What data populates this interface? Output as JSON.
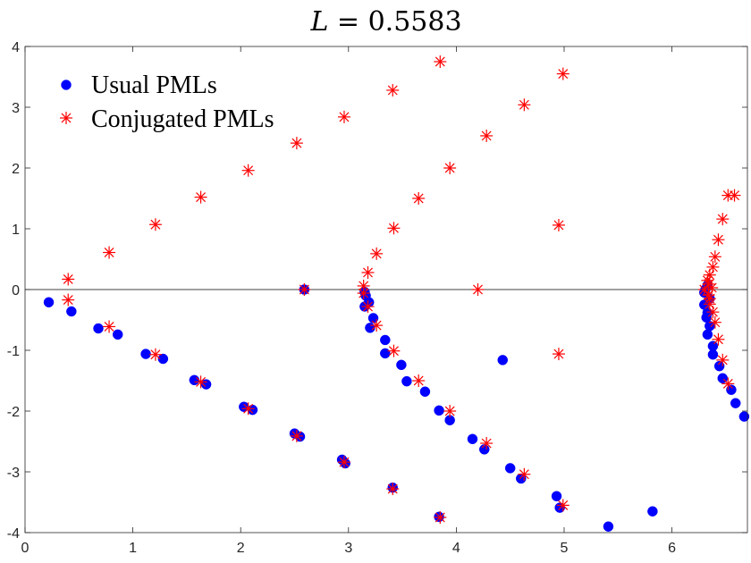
{
  "chart_data": {
    "type": "scatter",
    "title": "L = 0.5583",
    "title_symbol": "L",
    "title_rest": " = 0.5583",
    "xlim": [
      0,
      6.7
    ],
    "ylim": [
      -4,
      4
    ],
    "xticks": [
      0,
      1,
      2,
      3,
      4,
      5,
      6
    ],
    "yticks": [
      -4,
      -3,
      -2,
      -1,
      0,
      1,
      2,
      3,
      4
    ],
    "grid": false,
    "zero_line": true,
    "legend_position": "top-left",
    "series": [
      {
        "name": "Usual PMLs",
        "marker": "filled-circle",
        "color": "#0000ff",
        "points": [
          [
            0.22,
            -0.21
          ],
          [
            0.43,
            -0.36
          ],
          [
            0.68,
            -0.64
          ],
          [
            0.86,
            -0.74
          ],
          [
            1.12,
            -1.06
          ],
          [
            1.28,
            -1.14
          ],
          [
            1.57,
            -1.49
          ],
          [
            1.68,
            -1.56
          ],
          [
            2.03,
            -1.93
          ],
          [
            2.11,
            -1.98
          ],
          [
            2.5,
            -2.37
          ],
          [
            2.55,
            -2.42
          ],
          [
            2.94,
            -2.8
          ],
          [
            2.97,
            -2.86
          ],
          [
            3.41,
            -3.26
          ],
          [
            3.84,
            -3.74
          ],
          [
            2.59,
            0.0
          ],
          [
            3.15,
            -0.04
          ],
          [
            3.16,
            -0.1
          ],
          [
            3.15,
            -0.28
          ],
          [
            3.19,
            -0.21
          ],
          [
            3.2,
            -0.63
          ],
          [
            3.23,
            -0.47
          ],
          [
            3.34,
            -0.83
          ],
          [
            3.34,
            -1.05
          ],
          [
            3.49,
            -1.24
          ],
          [
            3.54,
            -1.51
          ],
          [
            3.71,
            -1.68
          ],
          [
            3.84,
            -1.99
          ],
          [
            3.94,
            -2.15
          ],
          [
            4.15,
            -2.46
          ],
          [
            4.26,
            -2.63
          ],
          [
            4.43,
            -1.16
          ],
          [
            4.5,
            -2.94
          ],
          [
            4.6,
            -3.11
          ],
          [
            4.93,
            -3.4
          ],
          [
            4.96,
            -3.59
          ],
          [
            5.41,
            -3.9
          ],
          [
            5.82,
            -3.65
          ],
          [
            6.3,
            -0.05
          ],
          [
            6.3,
            -0.25
          ],
          [
            6.32,
            -0.46
          ],
          [
            6.33,
            -0.38
          ],
          [
            6.35,
            -0.6
          ],
          [
            6.33,
            -0.74
          ],
          [
            6.38,
            -0.93
          ],
          [
            6.38,
            -1.07
          ],
          [
            6.44,
            -1.26
          ],
          [
            6.47,
            -1.46
          ],
          [
            6.55,
            -1.65
          ],
          [
            6.59,
            -1.87
          ],
          [
            6.67,
            -2.09
          ],
          [
            6.31,
            0.0
          ],
          [
            6.33,
            0.07
          ],
          [
            6.35,
            -0.15
          ]
        ]
      },
      {
        "name": "Conjugated PMLs",
        "marker": "asterisk",
        "color": "#ff0000",
        "points": [
          [
            0.4,
            0.17
          ],
          [
            0.78,
            0.61
          ],
          [
            1.21,
            1.07
          ],
          [
            1.63,
            1.52
          ],
          [
            2.07,
            1.96
          ],
          [
            2.52,
            2.41
          ],
          [
            2.96,
            2.84
          ],
          [
            3.41,
            3.28
          ],
          [
            3.85,
            3.75
          ],
          [
            0.4,
            -0.17
          ],
          [
            0.78,
            -0.61
          ],
          [
            1.21,
            -1.07
          ],
          [
            1.63,
            -1.52
          ],
          [
            2.07,
            -1.96
          ],
          [
            2.52,
            -2.41
          ],
          [
            2.96,
            -2.84
          ],
          [
            3.41,
            -3.28
          ],
          [
            3.85,
            -3.75
          ],
          [
            2.59,
            0.0
          ],
          [
            3.14,
            0.06
          ],
          [
            3.18,
            0.28
          ],
          [
            3.26,
            0.59
          ],
          [
            3.42,
            1.01
          ],
          [
            3.65,
            1.5
          ],
          [
            3.94,
            2.0
          ],
          [
            4.28,
            2.53
          ],
          [
            4.63,
            3.04
          ],
          [
            4.99,
            3.55
          ],
          [
            3.14,
            -0.06
          ],
          [
            3.18,
            -0.28
          ],
          [
            3.26,
            -0.59
          ],
          [
            3.42,
            -1.01
          ],
          [
            3.65,
            -1.5
          ],
          [
            3.94,
            -2.0
          ],
          [
            4.28,
            -2.53
          ],
          [
            4.63,
            -3.04
          ],
          [
            4.99,
            -3.55
          ],
          [
            4.2,
            0.0
          ],
          [
            4.95,
            1.06
          ],
          [
            4.95,
            -1.06
          ],
          [
            6.3,
            0.0
          ],
          [
            6.34,
            0.09
          ],
          [
            6.35,
            0.24
          ],
          [
            6.38,
            0.37
          ],
          [
            6.4,
            0.54
          ],
          [
            6.43,
            0.82
          ],
          [
            6.47,
            1.16
          ],
          [
            6.52,
            1.55
          ],
          [
            6.58,
            1.55
          ],
          [
            6.34,
            -0.09
          ],
          [
            6.35,
            -0.24
          ],
          [
            6.38,
            -0.37
          ],
          [
            6.4,
            -0.54
          ],
          [
            6.43,
            -0.82
          ],
          [
            6.47,
            -1.16
          ],
          [
            6.52,
            -1.55
          ],
          [
            6.33,
            0.15
          ],
          [
            6.35,
            -0.15
          ],
          [
            6.37,
            0.03
          ]
        ]
      }
    ]
  }
}
